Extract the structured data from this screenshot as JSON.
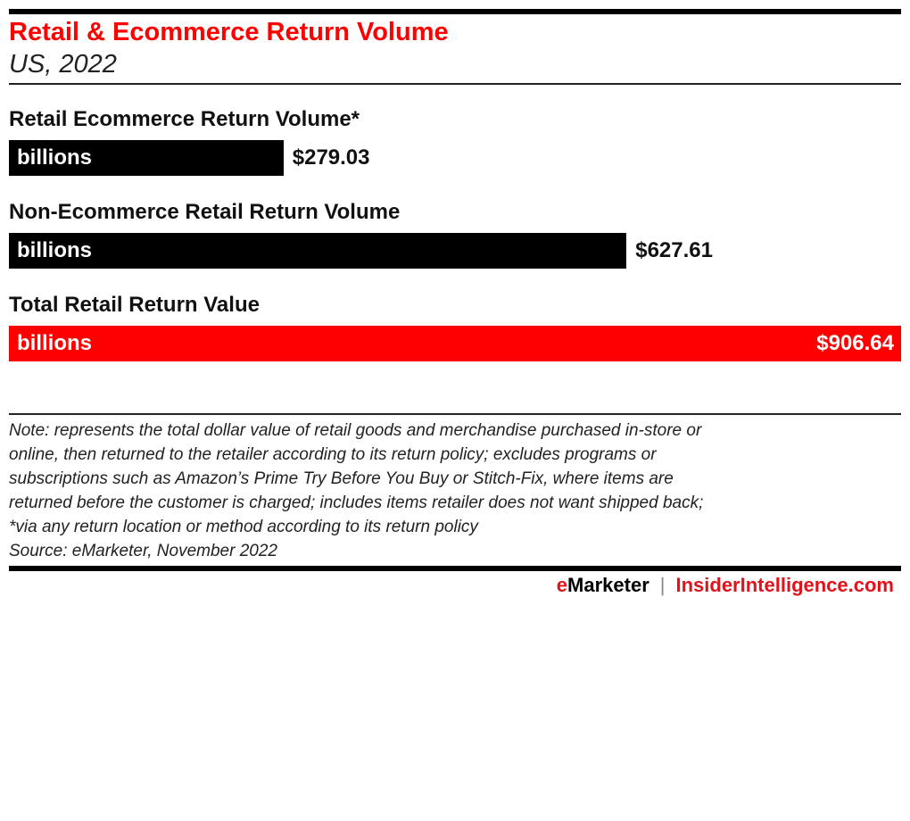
{
  "title": "Retail & Ecommerce Return Volume",
  "subtitle": "US, 2022",
  "chart_data": {
    "type": "bar",
    "orientation": "horizontal",
    "categories": [
      "Retail Ecommerce Return Volume*",
      "Non-Ecommerce Retail Return Volume",
      "Total Retail Return Value"
    ],
    "values": [
      279.03,
      627.61,
      906.64
    ],
    "value_labels": [
      "$279.03",
      "$627.61",
      "$906.64"
    ],
    "unit_label": "billions",
    "colors": [
      "#000000",
      "#000000",
      "#ff0000"
    ],
    "xlim": [
      0,
      906.64
    ]
  },
  "notes": {
    "lines": [
      "Note: represents the total dollar value of retail goods and merchandise purchased in-store or",
      "online, then returned to the retailer according to its return policy; excludes programs or",
      "subscriptions such as Amazon’s Prime Try Before You Buy or Stitch-Fix, where items are",
      "returned before the customer is charged; includes items retailer does not want shipped back;",
      "*via any return location or method according to its return policy"
    ],
    "source": "Source: eMarketer, November 2022"
  },
  "footer": {
    "brand_e": "e",
    "brand_rest": "Marketer",
    "separator": "|",
    "site": "InsiderIntelligence.com"
  }
}
